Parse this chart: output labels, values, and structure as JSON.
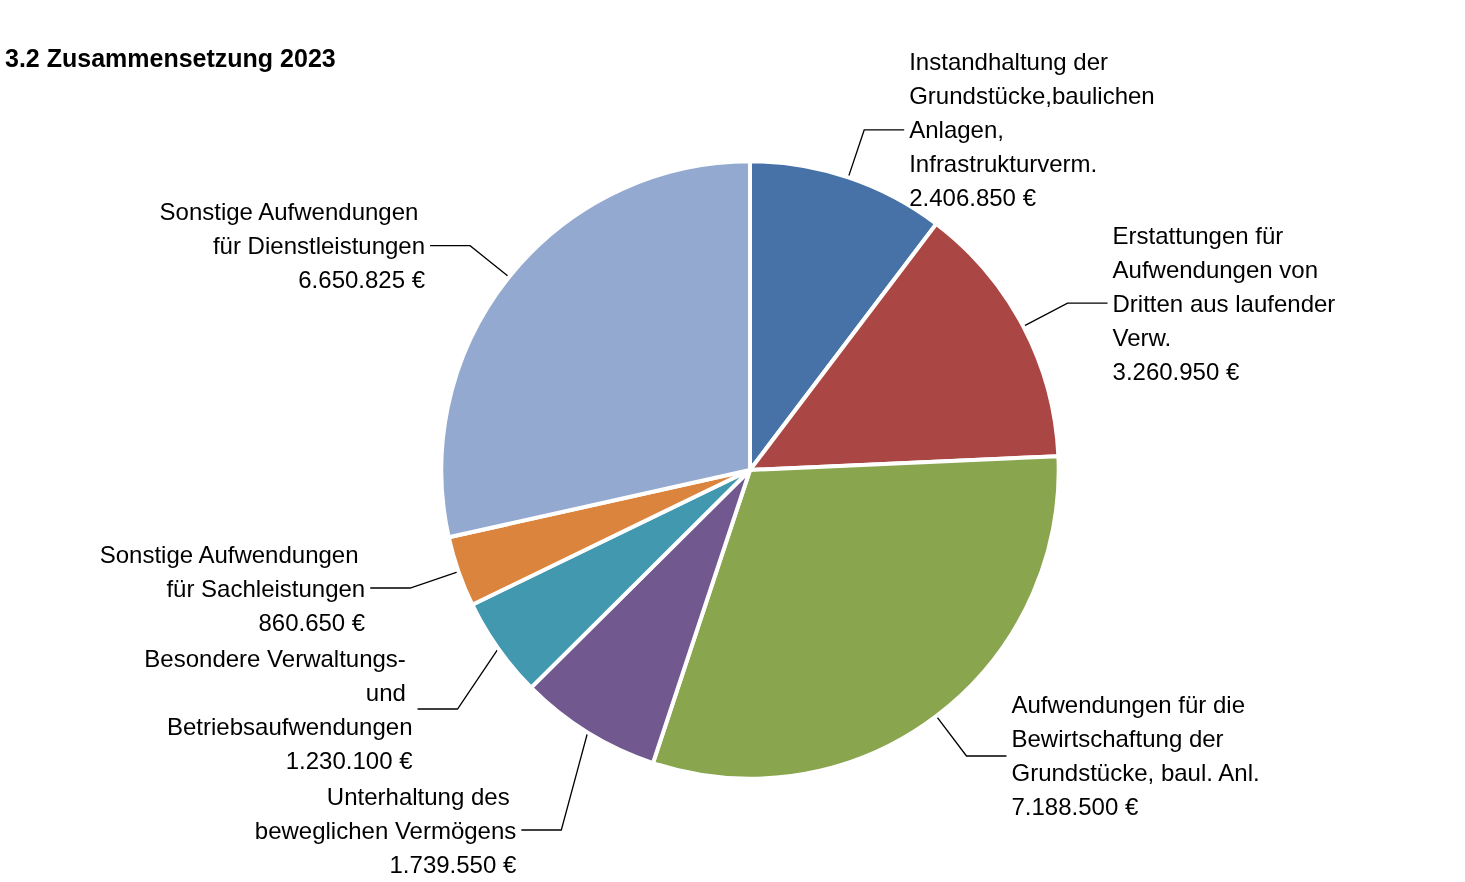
{
  "chart_data": {
    "type": "pie",
    "title": "3.2 Zusammensetzung 2023",
    "categories": [
      "Instandhaltung der Grundstücke,baulichen Anlagen,Infrastrukturverm.",
      "Erstattungen für Aufwendungen von Dritten aus laufender Verw.",
      "Aufwendungen für die Bewirtschaftung der Grundstücke, baul. Anl.",
      "Unterhaltung des beweglichen Vermögens",
      "Besondere Verwaltungs- und Betriebsaufwendungen",
      "Sonstige Aufwendungen für Sachleistungen",
      "Sonstige Aufwendungen für Dienstleistungen"
    ],
    "values": [
      2406850,
      3260950,
      7188500,
      1739550,
      1230100,
      860650,
      6650825
    ],
    "value_labels": [
      "2.406.850 €",
      "3.260.950 €",
      "7.188.500 €",
      "1.739.550 €",
      "1.230.100 €",
      "860.650 €",
      "6.650.825 €"
    ],
    "colors": [
      "#4672a8",
      "#aa4744",
      "#89a54e",
      "#71588f",
      "#4198af",
      "#db843d",
      "#93a9cf"
    ],
    "legend": false
  }
}
